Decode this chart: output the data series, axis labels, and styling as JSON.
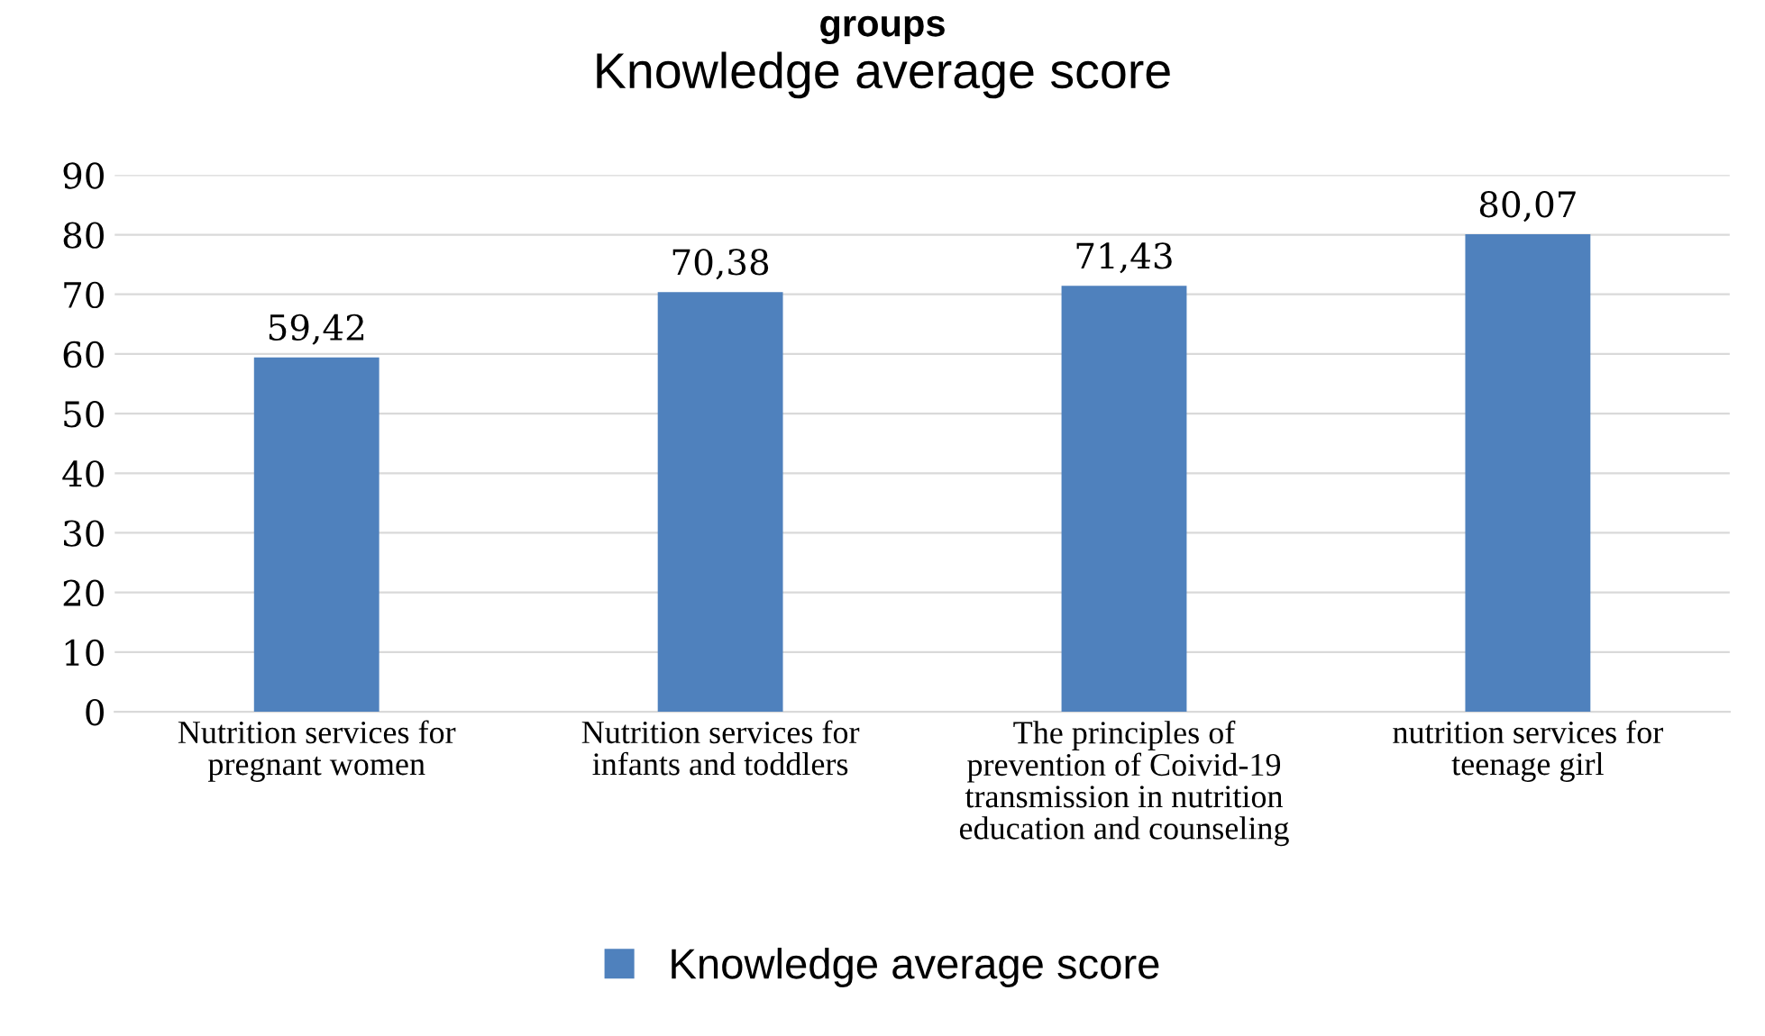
{
  "chart_data": {
    "type": "bar",
    "title": "Knowledge average score",
    "annotations": [
      "groups"
    ],
    "categories": [
      "Nutrition services for\npregnant women",
      "Nutrition services for\ninfants and toddlers",
      "The principles of\nprevention of Coivid-19\ntransmission in nutrition\neducation and counseling",
      "nutrition services for\nteenage girl"
    ],
    "series": [
      {
        "name": "Knowledge average score",
        "color": "#4f81bd",
        "values": [
          59.42,
          70.38,
          71.43,
          80.07
        ],
        "value_labels": [
          "59,42",
          "70,38",
          "71,43",
          "80,07"
        ]
      }
    ],
    "ylim": [
      0,
      90
    ],
    "yticks": [
      0,
      10,
      20,
      30,
      40,
      50,
      60,
      70,
      80,
      90
    ],
    "grid": "y",
    "legend": "bottom"
  }
}
